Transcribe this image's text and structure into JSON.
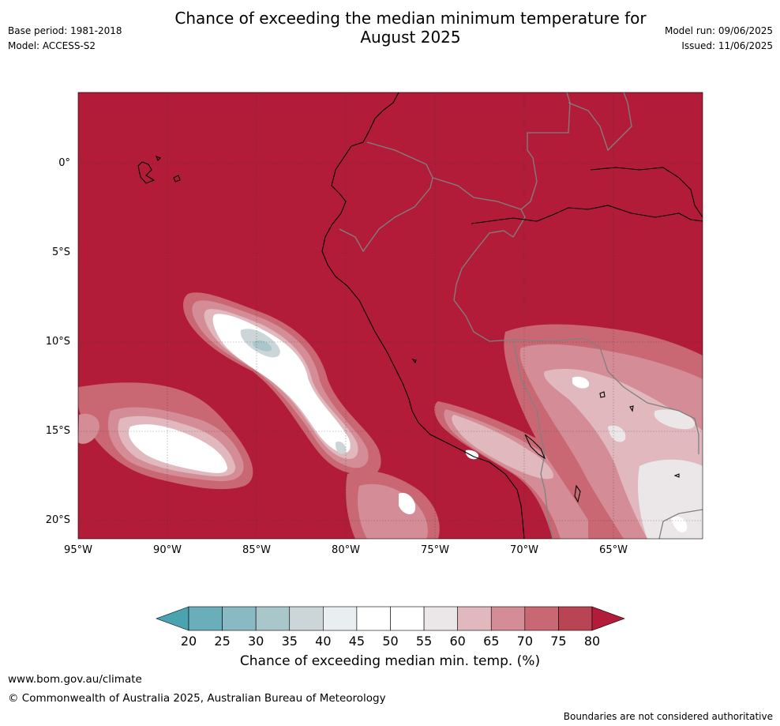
{
  "header": {
    "title_line1": "Chance of exceeding the median minimum temperature for",
    "title_line2": "August 2025",
    "base_period": "Base period: 1981-2018",
    "model": "Model: ACCESS-S2",
    "model_run": "Model run: 09/06/2025",
    "issued": "Issued: 11/06/2025"
  },
  "map": {
    "lat_labels": [
      "0°",
      "5°S",
      "10°S",
      "15°S",
      "20°S"
    ],
    "lon_labels": [
      "95°W",
      "90°W",
      "85°W",
      "80°W",
      "75°W",
      "70°W",
      "65°W"
    ],
    "base_color": "#b21c38",
    "coastline_color": "#000000",
    "border_color": "#808080"
  },
  "colorbar": {
    "ticks": [
      "20",
      "25",
      "30",
      "35",
      "40",
      "45",
      "50",
      "55",
      "60",
      "65",
      "70",
      "75",
      "80"
    ],
    "colors": [
      "#6aaeba",
      "#8ab9c3",
      "#a9c7cb",
      "#ccd6d8",
      "#e9eff1",
      "#ffffff",
      "#ffffff",
      "#ebe7e8",
      "#e0b8bd",
      "#d48d96",
      "#c96872",
      "#b94454"
    ],
    "under_color": "#4aa3b1",
    "over_color": "#b21c38",
    "label": "Chance of exceeding median min. temp. (%)"
  },
  "footer": {
    "url": "www.bom.gov.au/climate",
    "copyright": "© Commonwealth of Australia 2025, Australian Bureau of Meteorology",
    "disclaimer": "Boundaries are not considered authoritative"
  }
}
